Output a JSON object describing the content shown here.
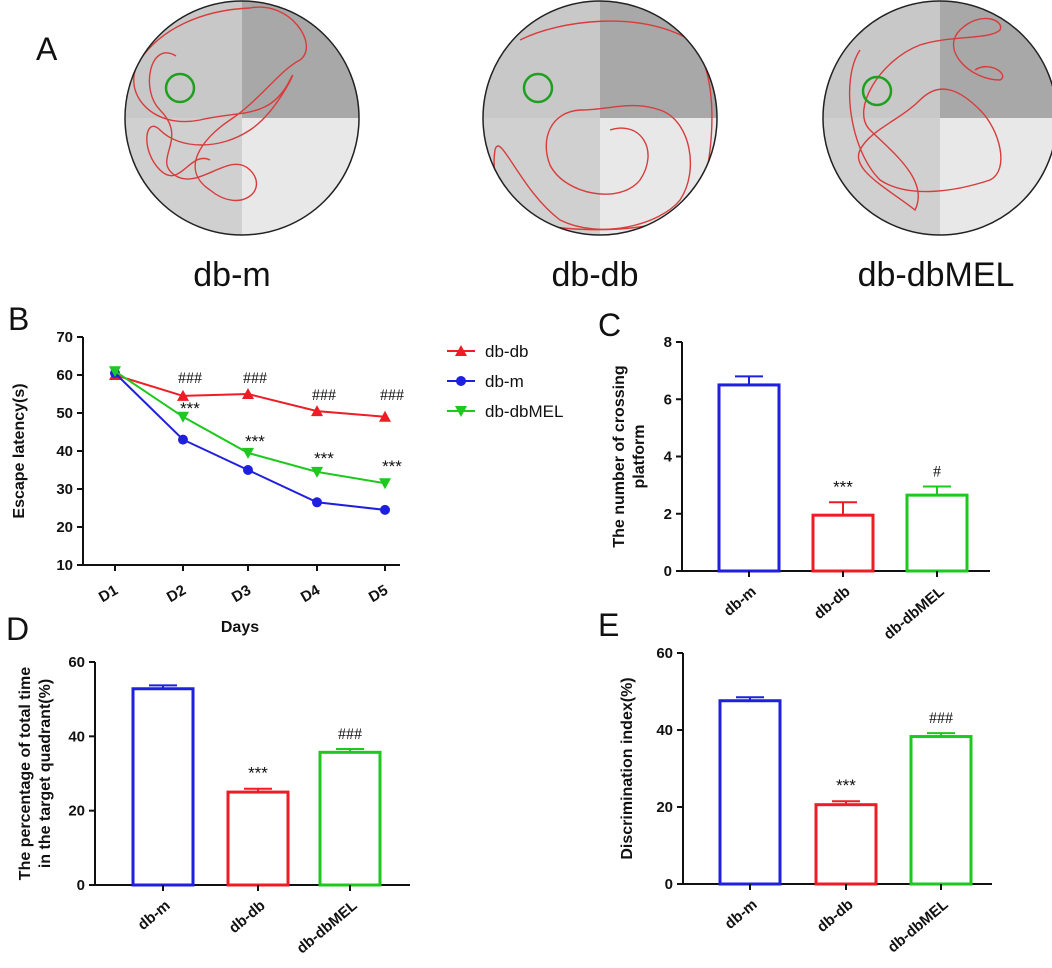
{
  "colors": {
    "db_m": "#1f1fe0",
    "db_db": "#ee1c24",
    "db_dbMEL": "#1ec81e",
    "path": "#d83c3c",
    "platform": "#1ea01e"
  },
  "panelA": {
    "letter": "A",
    "groups": [
      {
        "key": "db_m",
        "label": "db-m"
      },
      {
        "key": "db_db",
        "label": "db-db"
      },
      {
        "key": "db_dbMEL",
        "label": "db-dbMEL"
      }
    ]
  },
  "chart_data": [
    {
      "panel": "B",
      "type": "line",
      "xlabel": "Days",
      "ylabel": "Escape latency(s)",
      "categories": [
        "D1",
        "D2",
        "D3",
        "D4",
        "D5"
      ],
      "ylim": [
        10,
        70
      ],
      "yticks": [
        10,
        20,
        30,
        40,
        50,
        60,
        70
      ],
      "series": [
        {
          "name": "db-db",
          "key": "db_db",
          "marker": "triangle-up",
          "values": [
            60,
            54.5,
            55,
            50.5,
            49
          ]
        },
        {
          "name": "db-m",
          "key": "db_m",
          "marker": "circle",
          "values": [
            60.5,
            43,
            35,
            26.5,
            24.5
          ]
        },
        {
          "name": "db-dbMEL",
          "key": "db_dbMEL",
          "marker": "triangle-down",
          "values": [
            61,
            49,
            39.5,
            34.5,
            31.5
          ]
        }
      ],
      "annotations_hash": [
        "",
        "###",
        "###",
        "###",
        "###"
      ],
      "annotations_star": [
        "",
        "***",
        "***",
        "***",
        "***"
      ],
      "legend": "right"
    },
    {
      "panel": "C",
      "type": "bar",
      "ylabel_lines": [
        "The number of crossing",
        "platform"
      ],
      "categories": [
        "db-m",
        "db-db",
        "db-dbMEL"
      ],
      "keys": [
        "db_m",
        "db_db",
        "db_dbMEL"
      ],
      "values": [
        6.5,
        1.95,
        2.65
      ],
      "errors": [
        0.3,
        0.45,
        0.3
      ],
      "labels": [
        "",
        "***",
        "#"
      ],
      "ylim": [
        0,
        8
      ],
      "yticks": [
        0,
        2,
        4,
        6,
        8
      ]
    },
    {
      "panel": "D",
      "type": "bar",
      "ylabel_lines": [
        "The percentage of total time",
        "in the target quadrant(%)"
      ],
      "categories": [
        "db-m",
        "db-db",
        "db-dbMEL"
      ],
      "keys": [
        "db_m",
        "db_db",
        "db_dbMEL"
      ],
      "values": [
        52.8,
        25,
        35.7
      ],
      "errors": [
        0.9,
        0.9,
        0.9
      ],
      "labels": [
        "",
        "***",
        "###"
      ],
      "ylim": [
        0,
        60
      ],
      "yticks": [
        0,
        20,
        40,
        60
      ]
    },
    {
      "panel": "E",
      "type": "bar",
      "ylabel_lines": [
        "Discrimination index(%)"
      ],
      "categories": [
        "db-m",
        "db-db",
        "db-dbMEL"
      ],
      "keys": [
        "db_m",
        "db_db",
        "db_dbMEL"
      ],
      "values": [
        47.6,
        20.6,
        38.3
      ],
      "errors": [
        0.9,
        0.9,
        0.9
      ],
      "labels": [
        "",
        "***",
        "###"
      ],
      "ylim": [
        0,
        60
      ],
      "yticks": [
        0,
        20,
        40,
        60
      ]
    }
  ]
}
